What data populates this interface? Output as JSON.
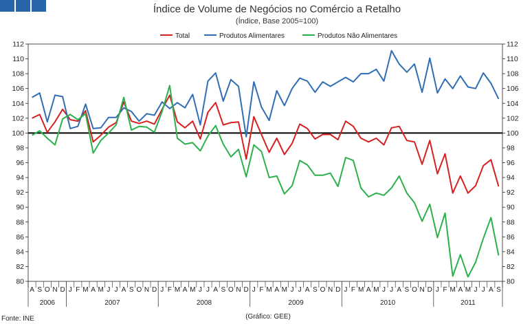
{
  "header": {
    "tiles": 3,
    "tile_color": "#2a64a8"
  },
  "chart_data": {
    "type": "line",
    "title": "Índice de Volume de Negócios no Comércio a Retalho",
    "subtitle": "(Índice, Base 2005=100)",
    "ylim": [
      80,
      112
    ],
    "yticks": [
      80,
      82,
      84,
      86,
      88,
      90,
      92,
      94,
      96,
      98,
      100,
      102,
      104,
      106,
      108,
      110,
      112
    ],
    "reference_line": 100,
    "months": [
      "A",
      "S",
      "O",
      "N",
      "D",
      "J",
      "F",
      "M",
      "A",
      "M",
      "J",
      "J",
      "A",
      "S",
      "O",
      "N",
      "D",
      "J",
      "F",
      "M",
      "A",
      "M",
      "J",
      "J",
      "A",
      "S",
      "O",
      "N",
      "D",
      "J",
      "F",
      "M",
      "A",
      "M",
      "J",
      "J",
      "A",
      "S",
      "O",
      "N",
      "D",
      "J",
      "F",
      "M",
      "A",
      "M",
      "J",
      "J",
      "A",
      "S",
      "O",
      "N",
      "D",
      "J",
      "F",
      "M",
      "A",
      "M",
      "J",
      "J",
      "A",
      "S"
    ],
    "years": [
      {
        "label": "2006",
        "start": 0,
        "count": 5
      },
      {
        "label": "2007",
        "start": 5,
        "count": 12
      },
      {
        "label": "2008",
        "start": 17,
        "count": 12
      },
      {
        "label": "2009",
        "start": 29,
        "count": 12
      },
      {
        "label": "2010",
        "start": 41,
        "count": 12
      },
      {
        "label": "2011",
        "start": 53,
        "count": 9
      }
    ],
    "series": [
      {
        "name": "Total",
        "color": "#d42020",
        "values": [
          102.0,
          102.5,
          100.1,
          101.5,
          103.2,
          101.8,
          101.6,
          103.0,
          98.8,
          99.7,
          100.8,
          101.4,
          104.2,
          101.6,
          101.3,
          101.6,
          101.2,
          103.2,
          105.1,
          101.5,
          100.7,
          101.6,
          99.2,
          102.8,
          104.1,
          101.1,
          101.4,
          101.5,
          96.5,
          102.2,
          99.8,
          97.4,
          99.3,
          97.1,
          98.6,
          101.2,
          100.6,
          99.2,
          99.8,
          99.8,
          99.1,
          101.6,
          100.9,
          99.3,
          98.8,
          99.3,
          98.4,
          100.7,
          100.9,
          99.0,
          98.8,
          95.8,
          99.0,
          94.5,
          97.2,
          91.9,
          94.2,
          91.9,
          92.9,
          95.6,
          96.4,
          92.8
        ]
      },
      {
        "name": "Produtos Alimentares",
        "color": "#2f6db5",
        "values": [
          104.8,
          105.4,
          101.5,
          105.1,
          104.9,
          100.6,
          100.9,
          103.9,
          100.6,
          100.7,
          102.1,
          102.1,
          103.4,
          102.9,
          101.6,
          102.6,
          102.4,
          104.2,
          103.3,
          104.1,
          103.4,
          105.2,
          101.1,
          107.0,
          108.1,
          104.3,
          107.2,
          106.3,
          99.5,
          106.9,
          103.5,
          101.7,
          105.7,
          103.7,
          106.0,
          107.4,
          107.0,
          105.5,
          106.9,
          106.3,
          106.9,
          107.5,
          106.9,
          108.0,
          108.0,
          108.6,
          107.0,
          111.1,
          109.3,
          108.2,
          109.3,
          105.5,
          110.1,
          105.4,
          107.3,
          106.0,
          107.7,
          106.2,
          106.0,
          108.1,
          106.7,
          104.6
        ]
      },
      {
        "name": "Produtos Não Alimentares",
        "color": "#2bb04c",
        "values": [
          99.7,
          100.3,
          99.3,
          98.4,
          101.9,
          102.5,
          101.8,
          102.6,
          97.3,
          99.0,
          100.0,
          101.1,
          104.8,
          100.4,
          100.9,
          100.8,
          100.1,
          102.9,
          106.4,
          99.3,
          98.5,
          98.7,
          97.6,
          99.6,
          101.0,
          98.5,
          96.8,
          97.8,
          94.1,
          98.4,
          97.5,
          94.0,
          94.2,
          91.8,
          92.9,
          96.3,
          95.7,
          94.3,
          94.3,
          94.6,
          92.8,
          96.7,
          96.3,
          92.6,
          91.4,
          91.9,
          91.6,
          92.6,
          94.2,
          91.9,
          90.6,
          88.1,
          90.4,
          85.9,
          89.2,
          80.7,
          83.6,
          80.6,
          82.6,
          85.8,
          88.6,
          83.5
        ]
      }
    ]
  },
  "footer": {
    "source": "Fonte: INE",
    "credit": "(Gráfico: GEE)"
  }
}
